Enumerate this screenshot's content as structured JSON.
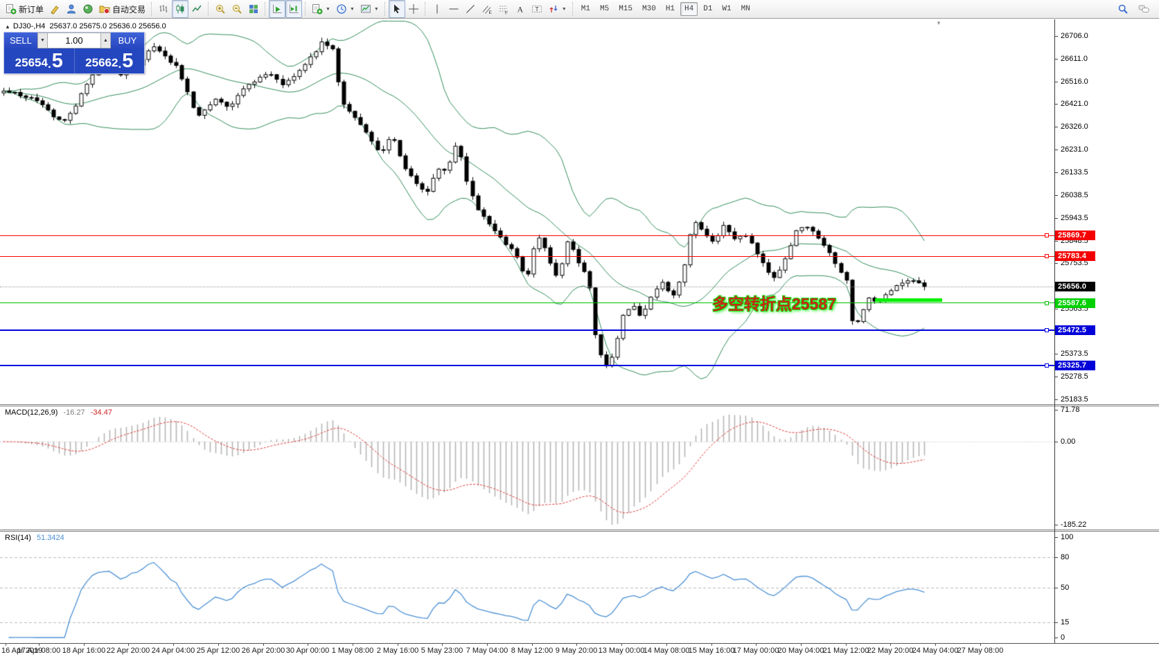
{
  "toolbar": {
    "standard": [
      {
        "name": "new-order",
        "icon": "doc-plus-icon",
        "label": "新订单"
      },
      {
        "name": "metaeditor",
        "icon": "yellow-pen-icon"
      },
      {
        "name": "mql5-community",
        "icon": "person-icon"
      },
      {
        "name": "signals",
        "icon": "orb-icon"
      },
      {
        "name": "auto-trading",
        "icon": "autotrade-icon",
        "label": "自动交易"
      }
    ],
    "chart_types": [
      {
        "name": "bar-chart-mode",
        "icon": "bars-icon",
        "active": false
      },
      {
        "name": "candlestick-mode",
        "icon": "candles-icon",
        "active": true
      },
      {
        "name": "line-chart-mode",
        "icon": "linechart-icon",
        "active": false
      }
    ],
    "zoom_group": [
      {
        "name": "zoom-in",
        "icon": "zoom-in-icon"
      },
      {
        "name": "zoom-out",
        "icon": "zoom-out-icon"
      },
      {
        "name": "tile-windows",
        "icon": "tiles-icon"
      }
    ],
    "scroll_group": [
      {
        "name": "auto-scroll",
        "icon": "autoscroll-icon",
        "active": true
      },
      {
        "name": "chart-shift",
        "icon": "chartshift-icon",
        "active": true
      }
    ],
    "object_group": [
      {
        "name": "new-chart",
        "icon": "doc-plus-icon",
        "dropdown": true
      },
      {
        "name": "periods",
        "icon": "clock-icon",
        "dropdown": true
      },
      {
        "name": "templates",
        "icon": "template-icon",
        "dropdown": true
      }
    ],
    "cursor_group": [
      {
        "name": "cursor-tool",
        "icon": "cursor-icon",
        "active": true
      },
      {
        "name": "crosshair-tool",
        "icon": "crosshair-icon"
      }
    ],
    "draw_group": [
      {
        "name": "vertical-line-tool",
        "icon": "vline-icon"
      },
      {
        "name": "horizontal-line-tool",
        "icon": "hline-icon"
      },
      {
        "name": "trendline-tool",
        "icon": "trendline-icon"
      },
      {
        "name": "equidistant-channel-tool",
        "icon": "channel-icon"
      },
      {
        "name": "fibonacci-tool",
        "icon": "fibo-icon"
      },
      {
        "name": "text-tool",
        "icon": "text-icon"
      },
      {
        "name": "text-label-tool",
        "icon": "label-icon"
      },
      {
        "name": "arrows-tool",
        "icon": "arrows-icon",
        "dropdown": true
      }
    ],
    "timeframes": [
      "M1",
      "M5",
      "M15",
      "M30",
      "H1",
      "H4",
      "D1",
      "W1",
      "MN"
    ],
    "timeframe_active": "H4",
    "right_icons": [
      {
        "name": "search",
        "icon": "magnifier-icon"
      },
      {
        "name": "chat",
        "icon": "chat-icon"
      }
    ]
  },
  "symbol_line": {
    "collapse_icon": "▲",
    "title": "DJ30-,H4",
    "ohlc": "25637.0 25675.0 25636.0 25656.0"
  },
  "trade_panel": {
    "sell_label": "SELL",
    "buy_label": "BUY",
    "volume": "1.00",
    "spin_down": "▼",
    "spin_up": "▲",
    "sell_main": "25654",
    "sell_point": ".",
    "sell_frac": "5",
    "buy_main": "25662",
    "buy_point": ".",
    "buy_frac": "5"
  },
  "macd_panel": {
    "name": "MACD(12,26,9)",
    "value_main": "-16.27",
    "value_signal": "-34.47",
    "axis": [
      {
        "label": "71.78",
        "v": 71.78
      },
      {
        "label": "0.00",
        "v": 0
      },
      {
        "label": "-185.22",
        "v": -185.22
      }
    ]
  },
  "rsi_panel": {
    "name": "RSI(14)",
    "value": "51.3424",
    "axis": [
      {
        "label": "100",
        "v": 100
      },
      {
        "label": "80",
        "v": 80
      },
      {
        "label": "50",
        "v": 50
      },
      {
        "label": "15",
        "v": 15
      },
      {
        "label": "0",
        "v": 0
      }
    ],
    "level_lines": [
      80,
      50,
      15
    ]
  },
  "chart_data": {
    "type": "candlestick",
    "symbol": "DJ30-",
    "timeframe": "H4",
    "ohlc_current": {
      "open": 25637.0,
      "high": 25675.0,
      "low": 25636.0,
      "close": 25656.0
    },
    "bid": 25654.5,
    "ask": 25662.5,
    "visible_price_range": [
      25183.5,
      26706.0
    ],
    "y_ticks": [
      "26706.0",
      "26611.0",
      "26516.0",
      "26421.0",
      "26326.0",
      "26231.0",
      "26133.5",
      "26038.5",
      "25943.5",
      "25848.5",
      "25753.5",
      "25563.5",
      "25373.5",
      "25278.5",
      "25183.5"
    ],
    "levels": [
      {
        "price": 25869.7,
        "label": "25869.7",
        "line_color": "#ff0000",
        "badge_color": "#f40000",
        "width": 1,
        "style": "solid"
      },
      {
        "price": 25783.4,
        "label": "25783.4",
        "line_color": "#ff0000",
        "badge_color": "#f40000",
        "width": 1,
        "style": "solid"
      },
      {
        "price": 25656.0,
        "label": "25656.0",
        "line_color": "#999999",
        "badge_color": "#000000",
        "width": 1,
        "style": "dotted"
      },
      {
        "price": 25587.6,
        "label": "25587.6",
        "line_color": "#00c000",
        "badge_color": "#00d000",
        "width": 1,
        "style": "solid"
      },
      {
        "price": 25472.5,
        "label": "25472.5",
        "line_color": "#0000e0",
        "badge_color": "#0000d8",
        "width": 2,
        "style": "solid"
      },
      {
        "price": 25325.7,
        "label": "25325.7",
        "line_color": "#0000e0",
        "badge_color": "#0000d8",
        "width": 2,
        "style": "solid"
      }
    ],
    "highlight_segment": {
      "price": 25600,
      "x_from": 1263,
      "x_to": 1360,
      "thickness": 5,
      "color": "#00f000"
    },
    "annotation": {
      "text": "多空转折点25587",
      "x": 1028,
      "y": 420,
      "color": "#c42814",
      "outline": "#1ce81c"
    },
    "candle_count": 166,
    "last_close": 25656.0,
    "price_path": [
      [
        4,
        26480
      ],
      [
        30,
        26460
      ],
      [
        55,
        26440
      ],
      [
        75,
        26370
      ],
      [
        95,
        26345
      ],
      [
        110,
        26420
      ],
      [
        130,
        26530
      ],
      [
        150,
        26575
      ],
      [
        175,
        26545
      ],
      [
        200,
        26590
      ],
      [
        220,
        26665
      ],
      [
        235,
        26635
      ],
      [
        255,
        26575
      ],
      [
        270,
        26470
      ],
      [
        285,
        26370
      ],
      [
        300,
        26415
      ],
      [
        315,
        26445
      ],
      [
        330,
        26400
      ],
      [
        345,
        26470
      ],
      [
        360,
        26500
      ],
      [
        375,
        26530
      ],
      [
        390,
        26545
      ],
      [
        410,
        26500
      ],
      [
        430,
        26560
      ],
      [
        450,
        26620
      ],
      [
        465,
        26680
      ],
      [
        480,
        26650
      ],
      [
        492,
        26445
      ],
      [
        505,
        26385
      ],
      [
        520,
        26340
      ],
      [
        535,
        26265
      ],
      [
        550,
        26220
      ],
      [
        565,
        26295
      ],
      [
        580,
        26175
      ],
      [
        600,
        26090
      ],
      [
        615,
        26040
      ],
      [
        630,
        26150
      ],
      [
        645,
        26145
      ],
      [
        660,
        26265
      ],
      [
        672,
        26115
      ],
      [
        685,
        26000
      ],
      [
        700,
        25940
      ],
      [
        715,
        25880
      ],
      [
        730,
        25835
      ],
      [
        745,
        25790
      ],
      [
        760,
        25675
      ],
      [
        775,
        25880
      ],
      [
        790,
        25790
      ],
      [
        805,
        25685
      ],
      [
        820,
        25855
      ],
      [
        835,
        25760
      ],
      [
        850,
        25670
      ],
      [
        860,
        25430
      ],
      [
        872,
        25315
      ],
      [
        885,
        25375
      ],
      [
        898,
        25525
      ],
      [
        912,
        25585
      ],
      [
        925,
        25525
      ],
      [
        940,
        25615
      ],
      [
        955,
        25675
      ],
      [
        970,
        25615
      ],
      [
        985,
        25705
      ],
      [
        1000,
        25940
      ],
      [
        1015,
        25880
      ],
      [
        1030,
        25835
      ],
      [
        1045,
        25910
      ],
      [
        1060,
        25850
      ],
      [
        1075,
        25880
      ],
      [
        1090,
        25805
      ],
      [
        1105,
        25730
      ],
      [
        1120,
        25685
      ],
      [
        1135,
        25790
      ],
      [
        1150,
        25895
      ],
      [
        1165,
        25910
      ],
      [
        1180,
        25865
      ],
      [
        1195,
        25805
      ],
      [
        1210,
        25730
      ],
      [
        1222,
        25675
      ],
      [
        1232,
        25465
      ],
      [
        1244,
        25555
      ],
      [
        1256,
        25615
      ],
      [
        1268,
        25585
      ],
      [
        1280,
        25630
      ],
      [
        1292,
        25658
      ],
      [
        1304,
        25672
      ],
      [
        1316,
        25678
      ],
      [
        1328,
        25668
      ],
      [
        1340,
        25656
      ]
    ],
    "indicators": {
      "bollinger": {
        "period": 20,
        "deviation": 2,
        "color": "#2e8b57"
      },
      "macd": {
        "fast": 12,
        "slow": 26,
        "signal": 9,
        "current_main": -16.27,
        "current_signal": -34.47,
        "range": [
          -185.22,
          71.78
        ],
        "histogram_color": "#b4b4b4",
        "signal_color": "#dd3333"
      },
      "rsi": {
        "period": 14,
        "current": 51.3424,
        "color": "#4a8fd4"
      }
    },
    "time_labels": [
      "16 Apr 2019",
      "17 Apr 08:00",
      "18 Apr 16:00",
      "22 Apr 20:00",
      "24 Apr 04:00",
      "25 Apr 12:00",
      "26 Apr 20:00",
      "30 Apr 00:00",
      "1 May 08:00",
      "2 May 16:00",
      "5 May 23:00",
      "7 May 04:00",
      "8 May 12:00",
      "9 May 20:00",
      "13 May 00:00",
      "14 May 08:00",
      "15 May 16:00",
      "17 May 00:00",
      "20 May 04:00",
      "21 May 12:00",
      "22 May 20:00",
      "24 May 04:00",
      "27 May 08:00"
    ]
  }
}
